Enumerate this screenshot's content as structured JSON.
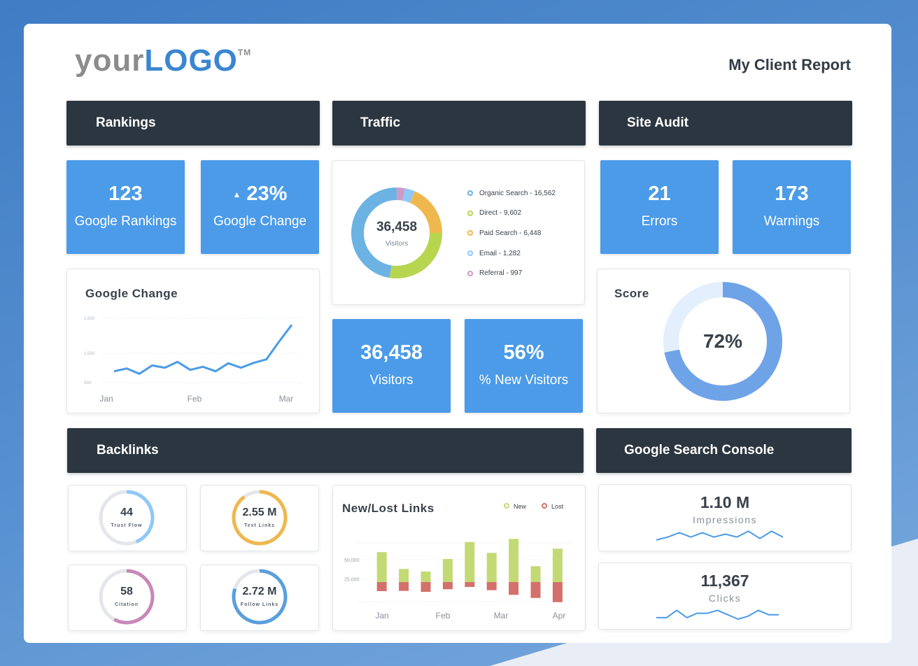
{
  "logo": {
    "light": "your",
    "bold": "LOGO",
    "tm": "TM"
  },
  "report_title": "My Client Report",
  "sections": {
    "rankings": "Rankings",
    "traffic": "Traffic",
    "site_audit": "Site Audit",
    "backlinks": "Backlinks",
    "gsc": "Google Search Console"
  },
  "rankings": {
    "tiles": [
      {
        "value": "123",
        "label": "Google Rankings"
      },
      {
        "value": "23%",
        "label": "Google Change",
        "icon": "triangle-up-icon"
      }
    ],
    "google_change": {
      "title": "Google Change",
      "chart_data": {
        "type": "line",
        "y_tick_labels": [
          "1,500",
          "1,500",
          "500"
        ],
        "x_labels": [
          "Jan",
          "Feb",
          "Mar"
        ],
        "values": [
          677,
          720,
          638,
          768,
          732,
          823,
          699,
          747,
          677,
          801,
          732,
          808,
          862,
          1138,
          1399
        ],
        "color": "#4b9be8",
        "grid": true
      }
    }
  },
  "traffic": {
    "total": "36,458",
    "total_label": "Visitors",
    "chart_data": {
      "type": "pie",
      "series": [
        {
          "name": "Organic Search - 16,562",
          "value": 16562,
          "color": "#6cb3e3"
        },
        {
          "name": "Direct - 9,602",
          "value": 9602,
          "color": "#b7d54f"
        },
        {
          "name": "Paid Search - 6,448",
          "value": 6448,
          "color": "#efb84f"
        },
        {
          "name": "Email - 1,282",
          "value": 1282,
          "color": "#8ec9f7"
        },
        {
          "name": "Referral - 997",
          "value": 997,
          "color": "#cf9ac8"
        }
      ]
    },
    "tiles": [
      {
        "value": "36,458",
        "label": "Visitors"
      },
      {
        "value": "56%",
        "label": "% New Visitors"
      }
    ]
  },
  "site_audit": {
    "tiles": [
      {
        "value": "21",
        "label": "Errors"
      },
      {
        "value": "173",
        "label": "Warnings"
      }
    ],
    "score": {
      "title": "Score",
      "value": "72%",
      "fraction": 0.72,
      "color": "#6fa3e8",
      "track": "#e3effc"
    }
  },
  "backlinks": {
    "rings": [
      {
        "value": "44",
        "label": "Trust Flow",
        "fraction": 0.44,
        "color": "#8ec9f7"
      },
      {
        "value": "2.55 M",
        "label": "Text Links",
        "fraction": 0.9,
        "color": "#efb84f"
      },
      {
        "value": "58",
        "label": "Citation",
        "fraction": 0.58,
        "color": "#c888b8"
      },
      {
        "value": "2.72 M",
        "label": "Follow Links",
        "fraction": 0.8,
        "color": "#5a9fdc"
      }
    ],
    "new_lost": {
      "title": "New/Lost Links",
      "chart_data": {
        "type": "bar",
        "legend": [
          {
            "name": "New",
            "color": "#c3da74"
          },
          {
            "name": "Lost",
            "color": "#d4706c"
          }
        ],
        "y_tick_labels": [
          "50,000",
          "25,000"
        ],
        "y_ticks": [
          50000,
          25000
        ],
        "x_labels": [
          "Jan",
          "Feb",
          "Mar",
          "Apr"
        ],
        "series": [
          {
            "name": "New",
            "values": [
              59700,
              38000,
              34700,
              50900,
              72800,
              58800,
              76800,
              41600,
              64200
            ]
          },
          {
            "name": "Lost",
            "values": [
              11700,
              11400,
              12600,
              9300,
              6300,
              10500,
              16500,
              20500,
              25900
            ]
          }
        ]
      }
    }
  },
  "gsc": {
    "impressions": {
      "value": "1.10 M",
      "label": "Impressions",
      "spark": [
        1,
        3,
        6,
        3,
        6,
        3,
        5,
        3,
        7,
        2,
        7,
        3
      ]
    },
    "clicks": {
      "value": "11,367",
      "label": "Clicks",
      "spark": [
        1,
        1,
        6,
        1,
        4,
        4,
        6,
        3,
        0,
        2,
        6,
        3,
        3
      ]
    }
  }
}
